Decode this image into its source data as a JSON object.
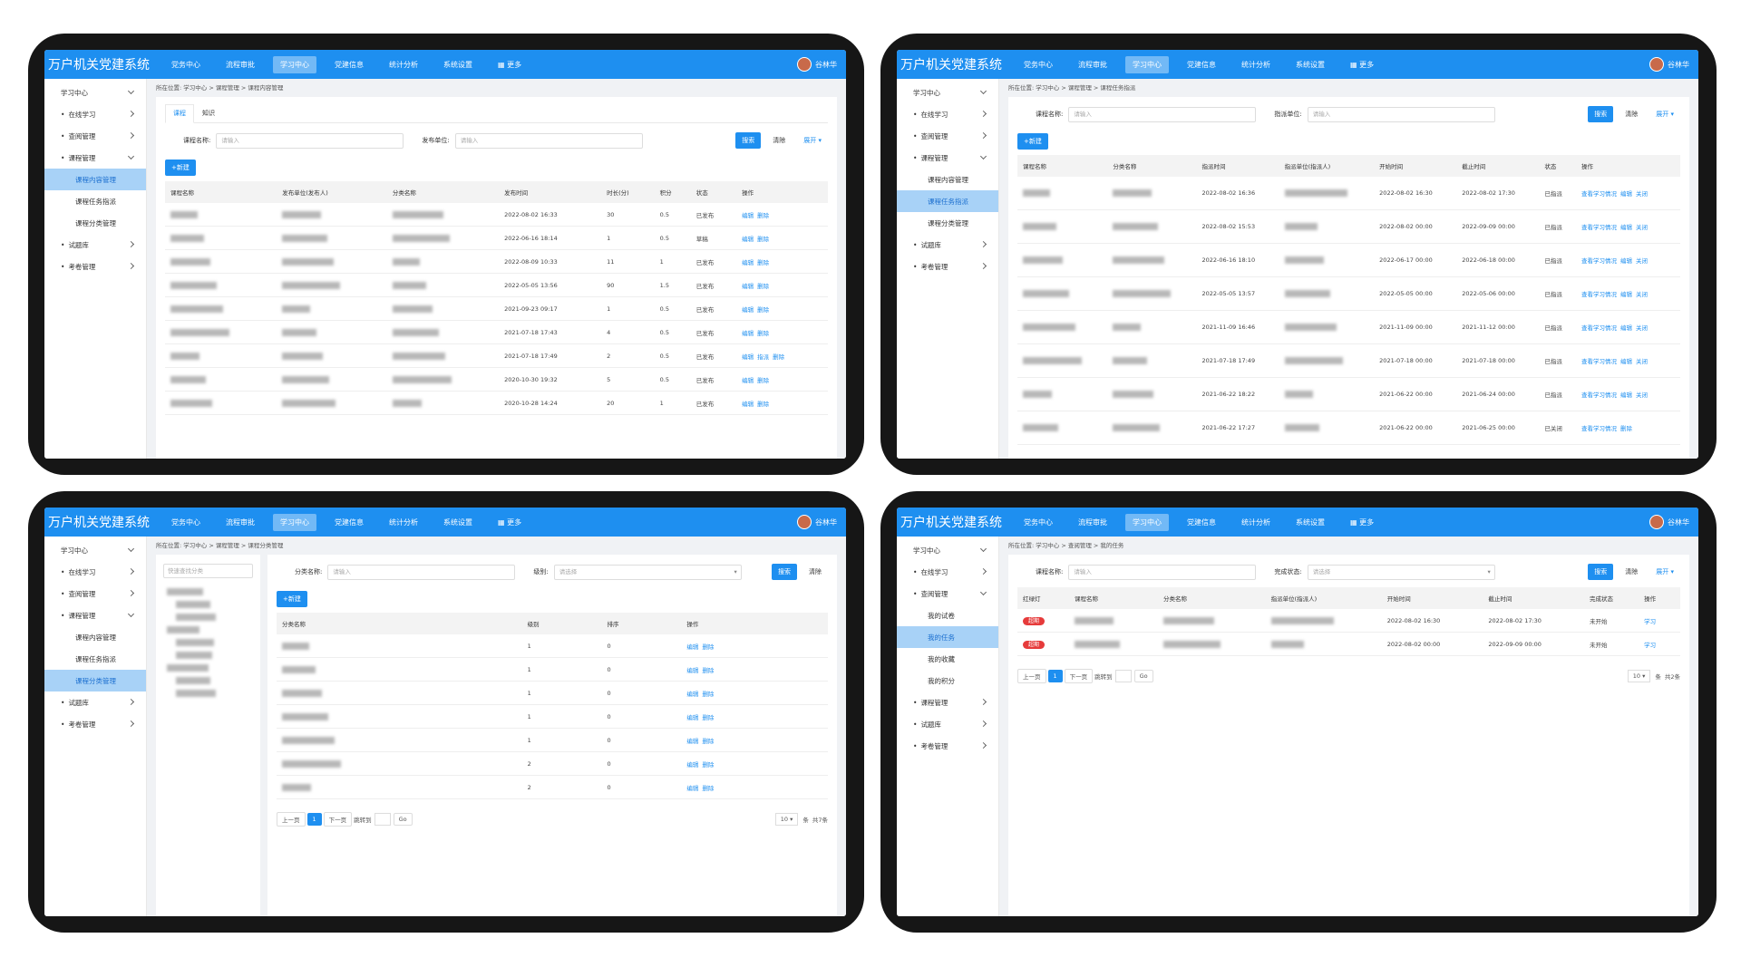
{
  "panels": [
    {
      "app_title": "万户机关党建系统",
      "nav": [
        "党务中心",
        "流程审批",
        "学习中心",
        "党建信息",
        "统计分析",
        "系统设置",
        "更多"
      ],
      "nav_active": 2,
      "user": "谷林华",
      "sidebar": [
        {
          "label": "学习中心",
          "level": 0
        },
        {
          "label": "在线学习",
          "level": 1
        },
        {
          "label": "查阅管理",
          "level": 1
        },
        {
          "label": "课程管理",
          "level": 1
        },
        {
          "label": "课程内容管理",
          "level": 2,
          "active": true
        },
        {
          "label": "课程任务指派",
          "level": 2
        },
        {
          "label": "课程分类管理",
          "level": 2
        },
        {
          "label": "试题库",
          "level": 1
        },
        {
          "label": "考卷管理",
          "level": 1
        }
      ],
      "breadcrumb": "所在位置: 学习中心 > 课程管理 > 课程内容管理",
      "tabs": [
        "课程",
        "知识"
      ],
      "filters": [
        {
          "label": "课程名称:",
          "placeholder": "请输入"
        },
        {
          "label": "发布单位:",
          "placeholder": "请输入"
        }
      ],
      "buttons": {
        "search": "搜索",
        "clear": "清除",
        "expand": "展开"
      },
      "new_button": "+新建",
      "table": {
        "columns": [
          "课程名称",
          "发布单位(发布人)",
          "分类名称",
          "发布时间",
          "时长(分)",
          "积分",
          "状态",
          "操作"
        ],
        "rows": [
          [
            null,
            null,
            null,
            "2022-08-02 16:33",
            "30",
            "0.5",
            "已发布",
            [
              "编辑",
              "删除"
            ]
          ],
          [
            null,
            null,
            null,
            "2022-06-16 18:14",
            "1",
            "0.5",
            "草稿",
            [
              "编辑",
              "删除"
            ]
          ],
          [
            null,
            null,
            null,
            "2022-08-09 10:33",
            "11",
            "1",
            "已发布",
            [
              "编辑",
              "删除"
            ]
          ],
          [
            null,
            null,
            null,
            "2022-05-05 13:56",
            "90",
            "1.5",
            "已发布",
            [
              "编辑",
              "删除"
            ]
          ],
          [
            null,
            null,
            null,
            "2021-09-23 09:17",
            "1",
            "0.5",
            "已发布",
            [
              "编辑",
              "删除"
            ]
          ],
          [
            null,
            null,
            null,
            "2021-07-18 17:43",
            "4",
            "0.5",
            "已发布",
            [
              "编辑",
              "删除"
            ]
          ],
          [
            null,
            null,
            null,
            "2021-07-18 17:49",
            "2",
            "0.5",
            "已发布",
            [
              "编辑",
              "指派",
              "删除"
            ]
          ],
          [
            null,
            null,
            null,
            "2020-10-30 19:32",
            "5",
            "0.5",
            "已发布",
            [
              "编辑",
              "删除"
            ]
          ],
          [
            null,
            null,
            null,
            "2020-10-28 14:24",
            "20",
            "1",
            "已发布",
            [
              "编辑",
              "删除"
            ]
          ]
        ]
      }
    },
    {
      "app_title": "万户机关党建系统",
      "nav": [
        "党务中心",
        "流程审批",
        "学习中心",
        "党建信息",
        "统计分析",
        "系统设置",
        "更多"
      ],
      "nav_active": 2,
      "user": "谷林华",
      "sidebar": [
        {
          "label": "学习中心",
          "level": 0
        },
        {
          "label": "在线学习",
          "level": 1
        },
        {
          "label": "查阅管理",
          "level": 1
        },
        {
          "label": "课程管理",
          "level": 1
        },
        {
          "label": "课程内容管理",
          "level": 2
        },
        {
          "label": "课程任务指派",
          "level": 2,
          "active": true
        },
        {
          "label": "课程分类管理",
          "level": 2
        },
        {
          "label": "试题库",
          "level": 1
        },
        {
          "label": "考卷管理",
          "level": 1
        }
      ],
      "breadcrumb": "所在位置: 学习中心 > 课程管理 > 课程任务指派",
      "filters": [
        {
          "label": "课程名称:",
          "placeholder": "请输入"
        },
        {
          "label": "指派单位:",
          "placeholder": "请输入"
        }
      ],
      "buttons": {
        "search": "搜索",
        "clear": "清除",
        "expand": "展开"
      },
      "new_button": "+新建",
      "table": {
        "columns": [
          "课程名称",
          "分类名称",
          "指派时间",
          "指派单位(指派人)",
          "开始时间",
          "截止时间",
          "状态",
          "操作"
        ],
        "rows": [
          [
            null,
            null,
            "2022-08-02 16:36",
            null,
            "2022-08-02 16:30",
            "2022-08-02 17:30",
            "已指派",
            [
              "查看学习情况",
              "编辑",
              "关闭"
            ]
          ],
          [
            null,
            null,
            "2022-08-02 15:53",
            null,
            "2022-08-02 00:00",
            "2022-09-09 00:00",
            "已指派",
            [
              "查看学习情况",
              "编辑",
              "关闭"
            ]
          ],
          [
            null,
            null,
            "2022-06-16 18:10",
            null,
            "2022-06-17 00:00",
            "2022-06-18 00:00",
            "已指派",
            [
              "查看学习情况",
              "编辑",
              "关闭"
            ]
          ],
          [
            null,
            null,
            "2022-05-05 13:57",
            null,
            "2022-05-05 00:00",
            "2022-05-06 00:00",
            "已指派",
            [
              "查看学习情况",
              "编辑",
              "关闭"
            ]
          ],
          [
            null,
            null,
            "2021-11-09 16:46",
            null,
            "2021-11-09 00:00",
            "2021-11-12 00:00",
            "已指派",
            [
              "查看学习情况",
              "编辑",
              "关闭"
            ]
          ],
          [
            null,
            null,
            "2021-07-18 17:49",
            null,
            "2021-07-18 00:00",
            "2021-07-18 00:00",
            "已指派",
            [
              "查看学习情况",
              "编辑",
              "关闭"
            ]
          ],
          [
            null,
            null,
            "2021-06-22 18:22",
            null,
            "2021-06-22 00:00",
            "2021-06-24 00:00",
            "已指派",
            [
              "查看学习情况",
              "编辑",
              "关闭"
            ]
          ],
          [
            null,
            null,
            "2021-06-22 17:27",
            null,
            "2021-06-22 00:00",
            "2021-06-25 00:00",
            "已关闭",
            [
              "查看学习情况",
              "删除"
            ]
          ]
        ]
      }
    },
    {
      "app_title": "万户机关党建系统",
      "nav": [
        "党务中心",
        "流程审批",
        "学习中心",
        "党建信息",
        "统计分析",
        "系统设置",
        "更多"
      ],
      "nav_active": 2,
      "user": "谷林华",
      "sidebar": [
        {
          "label": "学习中心",
          "level": 0
        },
        {
          "label": "在线学习",
          "level": 1
        },
        {
          "label": "查阅管理",
          "level": 1
        },
        {
          "label": "课程管理",
          "level": 1
        },
        {
          "label": "课程内容管理",
          "level": 2
        },
        {
          "label": "课程任务指派",
          "level": 2
        },
        {
          "label": "课程分类管理",
          "level": 2,
          "active": true
        },
        {
          "label": "试题库",
          "level": 1
        },
        {
          "label": "考卷管理",
          "level": 1
        }
      ],
      "breadcrumb": "所在位置: 学习中心 > 课程管理 > 课程分类管理",
      "tree": {
        "search_placeholder": "快速查找分类"
      },
      "filters": [
        {
          "label": "分类名称:",
          "placeholder": "请输入"
        },
        {
          "label": "级别:",
          "placeholder": "请选择",
          "select": true
        }
      ],
      "buttons": {
        "search": "搜索",
        "clear": "清除"
      },
      "new_button": "+新建",
      "table": {
        "columns": [
          "分类名称",
          "级别",
          "排序",
          "操作"
        ],
        "rows": [
          [
            null,
            "1",
            "0",
            [
              "编辑",
              "删除"
            ]
          ],
          [
            null,
            "1",
            "0",
            [
              "编辑",
              "删除"
            ]
          ],
          [
            null,
            "1",
            "0",
            [
              "编辑",
              "删除"
            ]
          ],
          [
            null,
            "1",
            "0",
            [
              "编辑",
              "删除"
            ]
          ],
          [
            null,
            "1",
            "0",
            [
              "编辑",
              "删除"
            ]
          ],
          [
            null,
            "2",
            "0",
            [
              "编辑",
              "删除"
            ]
          ],
          [
            null,
            "2",
            "0",
            [
              "编辑",
              "删除"
            ]
          ]
        ]
      },
      "pagination": {
        "prev": "上一页",
        "page": "1",
        "next": "下一页",
        "jump": "跳转到",
        "go": "Go",
        "page_size": "10",
        "unit": "条",
        "total": "共7条"
      }
    },
    {
      "app_title": "万户机关党建系统",
      "nav": [
        "党务中心",
        "流程审批",
        "学习中心",
        "党建信息",
        "统计分析",
        "系统设置",
        "更多"
      ],
      "nav_active": 2,
      "user": "谷林华",
      "sidebar": [
        {
          "label": "学习中心",
          "level": 0
        },
        {
          "label": "在线学习",
          "level": 1
        },
        {
          "label": "查阅管理",
          "level": 1
        },
        {
          "label": "我的试卷",
          "level": 2
        },
        {
          "label": "我的任务",
          "level": 2,
          "active": true
        },
        {
          "label": "我的收藏",
          "level": 2
        },
        {
          "label": "我的积分",
          "level": 2
        },
        {
          "label": "课程管理",
          "level": 1
        },
        {
          "label": "试题库",
          "level": 1
        },
        {
          "label": "考卷管理",
          "level": 1
        }
      ],
      "breadcrumb": "所在位置: 学习中心 > 查阅管理 > 我的任务",
      "filters": [
        {
          "label": "课程名称:",
          "placeholder": "请输入"
        },
        {
          "label": "完成状态:",
          "placeholder": "请选择",
          "select": true
        }
      ],
      "buttons": {
        "search": "搜索",
        "clear": "清除",
        "expand": "展开"
      },
      "table": {
        "columns": [
          "红绿灯",
          "课程名称",
          "分类名称",
          "指派单位(指派人)",
          "开始时间",
          "截止时间",
          "完成状态",
          "操作"
        ],
        "badge_column": 0,
        "rows": [
          [
            "超期",
            null,
            null,
            null,
            "2022-08-02 16:30",
            "2022-08-02 17:30",
            "未开始",
            [
              "学习"
            ]
          ],
          [
            "超期",
            null,
            null,
            null,
            "2022-08-02 00:00",
            "2022-09-09 00:00",
            "未开始",
            [
              "学习"
            ]
          ]
        ]
      },
      "pagination": {
        "prev": "上一页",
        "page": "1",
        "next": "下一页",
        "jump": "跳转到",
        "go": "Go",
        "page_size": "10",
        "unit": "条",
        "total": "共2条"
      }
    }
  ]
}
